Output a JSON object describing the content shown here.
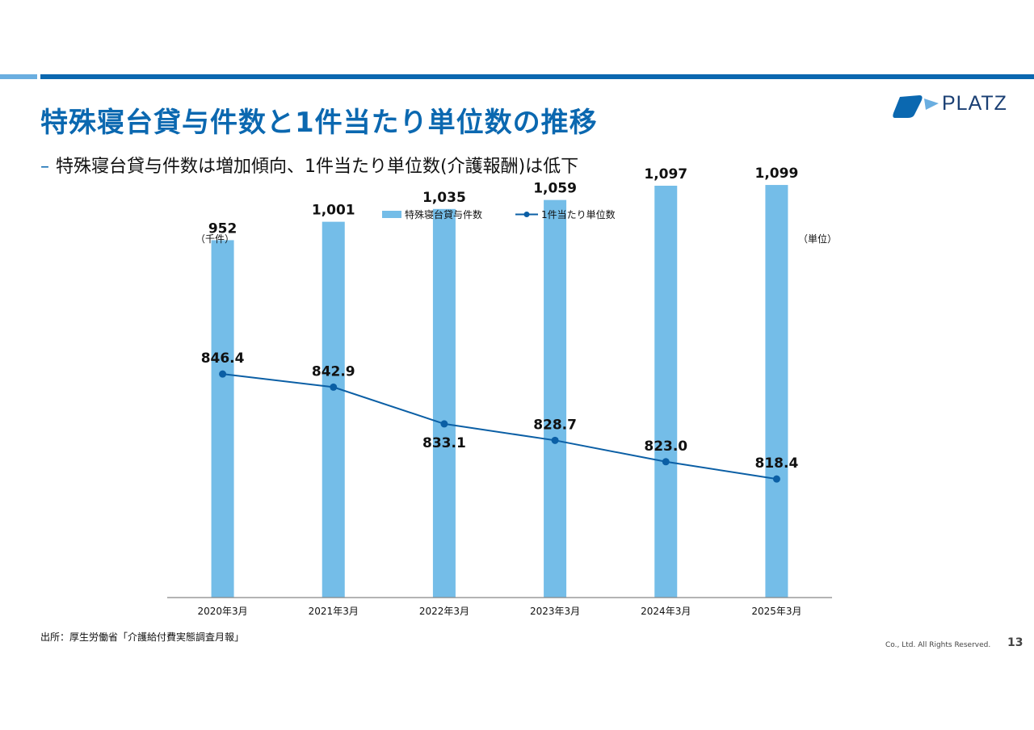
{
  "header": {
    "title": "特殊寝台貸与件数と1件当たり単位数の推移",
    "subtitle_dash": "–",
    "subtitle": "特殊寝台貸与件数は増加傾向、1件当たり単位数(介護報酬)は低下",
    "logo_text": "PLATZ"
  },
  "colors": {
    "brand_blue": "#0b68b0",
    "light_blue": "#6aaee0",
    "bar": "#74bde8",
    "line": "#0b5fa5"
  },
  "chart_data": {
    "type": "bar+line",
    "categories": [
      "2020年3月",
      "2021年3月",
      "2022年3月",
      "2023年3月",
      "2024年3月",
      "2025年3月"
    ],
    "left_unit": "（千件）",
    "right_unit": "（単位）",
    "legend_position": "top-center",
    "grid": false,
    "series": [
      {
        "name": "特殊寝台貸与件数",
        "kind": "bar",
        "axis": "left",
        "values": [
          952,
          1001,
          1035,
          1059,
          1097,
          1099
        ],
        "labels": [
          "952",
          "1,001",
          "1,035",
          "1,059",
          "1,097",
          "1,099"
        ],
        "ylim": [
          0,
          1140
        ]
      },
      {
        "name": "1件当たり単位数",
        "kind": "line",
        "axis": "right",
        "values": [
          846.4,
          842.9,
          833.1,
          828.7,
          823.0,
          818.4
        ],
        "labels": [
          "846.4",
          "842.9",
          "833.1",
          "828.7",
          "823.0",
          "818.4"
        ],
        "label_position": [
          "above",
          "above",
          "below",
          "above",
          "above",
          "above"
        ],
        "ylim": [
          790,
          860
        ]
      }
    ]
  },
  "footer": {
    "source": "出所：厚生労働省「介護給付費実態調査月報」",
    "copyright": "Co., Ltd. All Rights Reserved.",
    "page_number": "13"
  }
}
